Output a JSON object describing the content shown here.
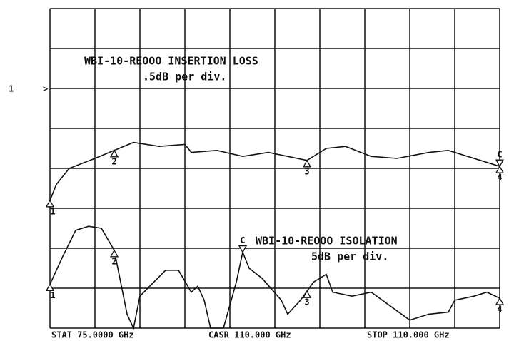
{
  "chart_data": {
    "type": "line",
    "channel_label": "1",
    "reference_marker": ">",
    "annotations": [
      {
        "text": "WBI-10-REOOO  INSERTION LOSS",
        "scale": ".5dB per div."
      },
      {
        "text": "WBI-10-REOOO  ISOLATION",
        "scale": "5dB per div."
      }
    ],
    "footer": [
      "STAT 75.0000 GHz",
      "CASR 110.000 GHz",
      "STOP 110.000 GHz"
    ],
    "xlim": [
      75,
      110
    ],
    "ylim": [
      0,
      8
    ],
    "grid": true,
    "grid_divisions": [
      10,
      8
    ],
    "series": [
      {
        "name": "INSERTION LOSS",
        "color": "#111111",
        "x": [
          75,
          75.5,
          76.5,
          78.5,
          80,
          81.5,
          83.5,
          85.5,
          86,
          88,
          90,
          92,
          95,
          96.5,
          98,
          100,
          102,
          104.5,
          106,
          108,
          110
        ],
        "values": [
          3.2,
          3.6,
          4.0,
          4.25,
          4.45,
          4.65,
          4.55,
          4.6,
          4.4,
          4.45,
          4.3,
          4.4,
          4.2,
          4.5,
          4.55,
          4.3,
          4.25,
          4.4,
          4.45,
          4.25,
          4.05
        ],
        "markers": [
          {
            "label": "1",
            "x": 75
          },
          {
            "label": "2",
            "x": 80
          },
          {
            "label": "3",
            "x": 95
          },
          {
            "label": "4",
            "x": 110
          },
          {
            "label": "C",
            "x": 110
          }
        ]
      },
      {
        "name": "ISOLATION",
        "color": "#111111",
        "x": [
          75,
          76,
          77,
          78,
          79,
          80,
          80.5,
          81,
          81.5,
          82,
          84,
          85,
          86,
          86.5,
          87,
          87.5,
          88.5,
          89.5,
          90,
          90.5,
          91.5,
          93,
          93.5,
          94.5,
          95.5,
          96.5,
          97,
          98.5,
          100,
          101.5,
          103,
          104.5,
          106,
          106.5,
          108,
          109,
          110
        ],
        "values": [
          1.1,
          1.8,
          2.45,
          2.55,
          2.5,
          1.95,
          1.15,
          0.35,
          0,
          0.8,
          1.45,
          1.45,
          0.9,
          1.05,
          0.7,
          0,
          0,
          1.15,
          1.9,
          1.5,
          1.25,
          0.7,
          0.35,
          0.7,
          1.15,
          1.35,
          0.9,
          0.8,
          0.9,
          0.55,
          0.2,
          0.35,
          0.4,
          0.7,
          0.8,
          0.9,
          0.75
        ],
        "markers": [
          {
            "label": "1",
            "x": 75
          },
          {
            "label": "2",
            "x": 80
          },
          {
            "label": "3",
            "x": 95
          },
          {
            "label": "4",
            "x": 110
          },
          {
            "label": "C",
            "x": 90
          }
        ]
      }
    ]
  }
}
